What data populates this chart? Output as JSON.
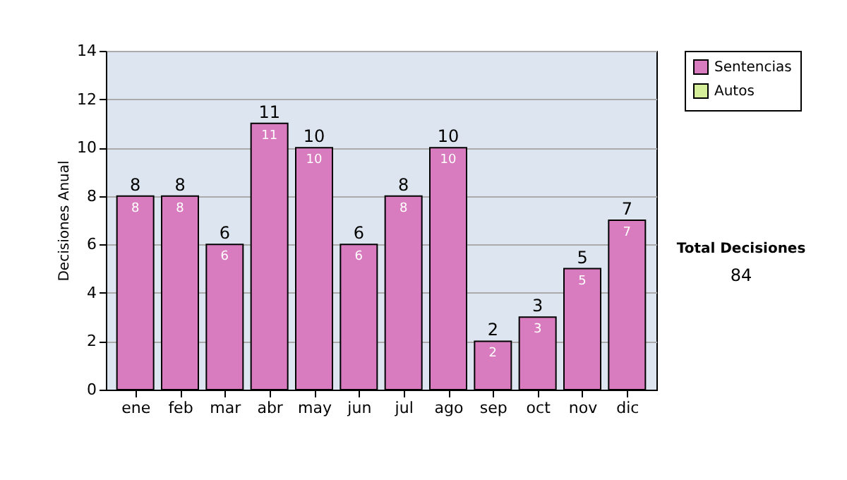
{
  "chart_data": {
    "type": "bar",
    "stacked": true,
    "ylabel": "Decisiones Anual",
    "categories": [
      "ene",
      "feb",
      "mar",
      "abr",
      "may",
      "jun",
      "jul",
      "ago",
      "sep",
      "oct",
      "nov",
      "dic"
    ],
    "series": [
      {
        "name": "Sentencias",
        "color": "#d97cbf",
        "values": [
          8,
          8,
          6,
          11,
          10,
          6,
          8,
          10,
          2,
          3,
          5,
          7
        ]
      },
      {
        "name": "Autos",
        "color": "#d4ee99",
        "values": [
          null,
          null,
          null,
          null,
          null,
          null,
          null,
          null,
          null,
          null,
          null,
          null
        ]
      }
    ],
    "totals": [
      "8",
      "8",
      "6",
      "11",
      "10",
      "6",
      "8",
      "10",
      "2",
      "3",
      "5",
      "7"
    ],
    "data_labels": true,
    "ylim": [
      0,
      14
    ],
    "yticks": [
      0,
      2,
      4,
      6,
      8,
      10,
      12,
      14
    ],
    "grid": "y",
    "legend": "right",
    "annotations": [
      "Total Decisiones",
      "84"
    ]
  }
}
